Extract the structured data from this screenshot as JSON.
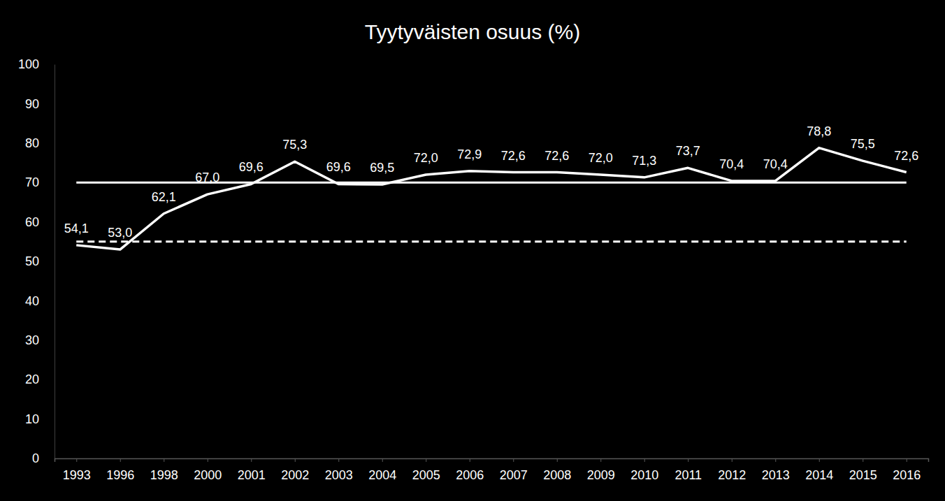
{
  "chart_data": {
    "type": "line",
    "title": "Tyytyväisten osuus (%)",
    "categories": [
      "1993",
      "1996",
      "1998",
      "2000",
      "2001",
      "2002",
      "2003",
      "2004",
      "2005",
      "2006",
      "2007",
      "2008",
      "2009",
      "2010",
      "2011",
      "2012",
      "2013",
      "2014",
      "2015",
      "2016"
    ],
    "series": [
      {
        "color": "#ffffff",
        "values": [
          54.1,
          53.0,
          62.1,
          67.0,
          69.6,
          75.3,
          69.6,
          69.5,
          72.0,
          72.9,
          72.6,
          72.6,
          72.0,
          71.3,
          73.7,
          70.4,
          70.4,
          78.8,
          75.5,
          72.6
        ],
        "value_labels": [
          "54,1",
          "53,0",
          "62,1",
          "67,0",
          "69,6",
          "75,3",
          "69,6",
          "69,5",
          "72,0",
          "72,9",
          "72,6",
          "72,6",
          "72,0",
          "71,3",
          "73,7",
          "70,4",
          "70,4",
          "78,8",
          "75,5",
          "72,6"
        ]
      }
    ],
    "ylim": [
      0,
      100
    ],
    "yticks": [
      0,
      10,
      20,
      30,
      40,
      50,
      60,
      70,
      80,
      90,
      100
    ],
    "grid": false,
    "data_labels": true,
    "reference_lines": [
      {
        "value": 70,
        "color": "#ffffff",
        "line_style": "solid"
      },
      {
        "value": 55,
        "color": "#ffffff",
        "line_style": "dashed"
      }
    ]
  }
}
